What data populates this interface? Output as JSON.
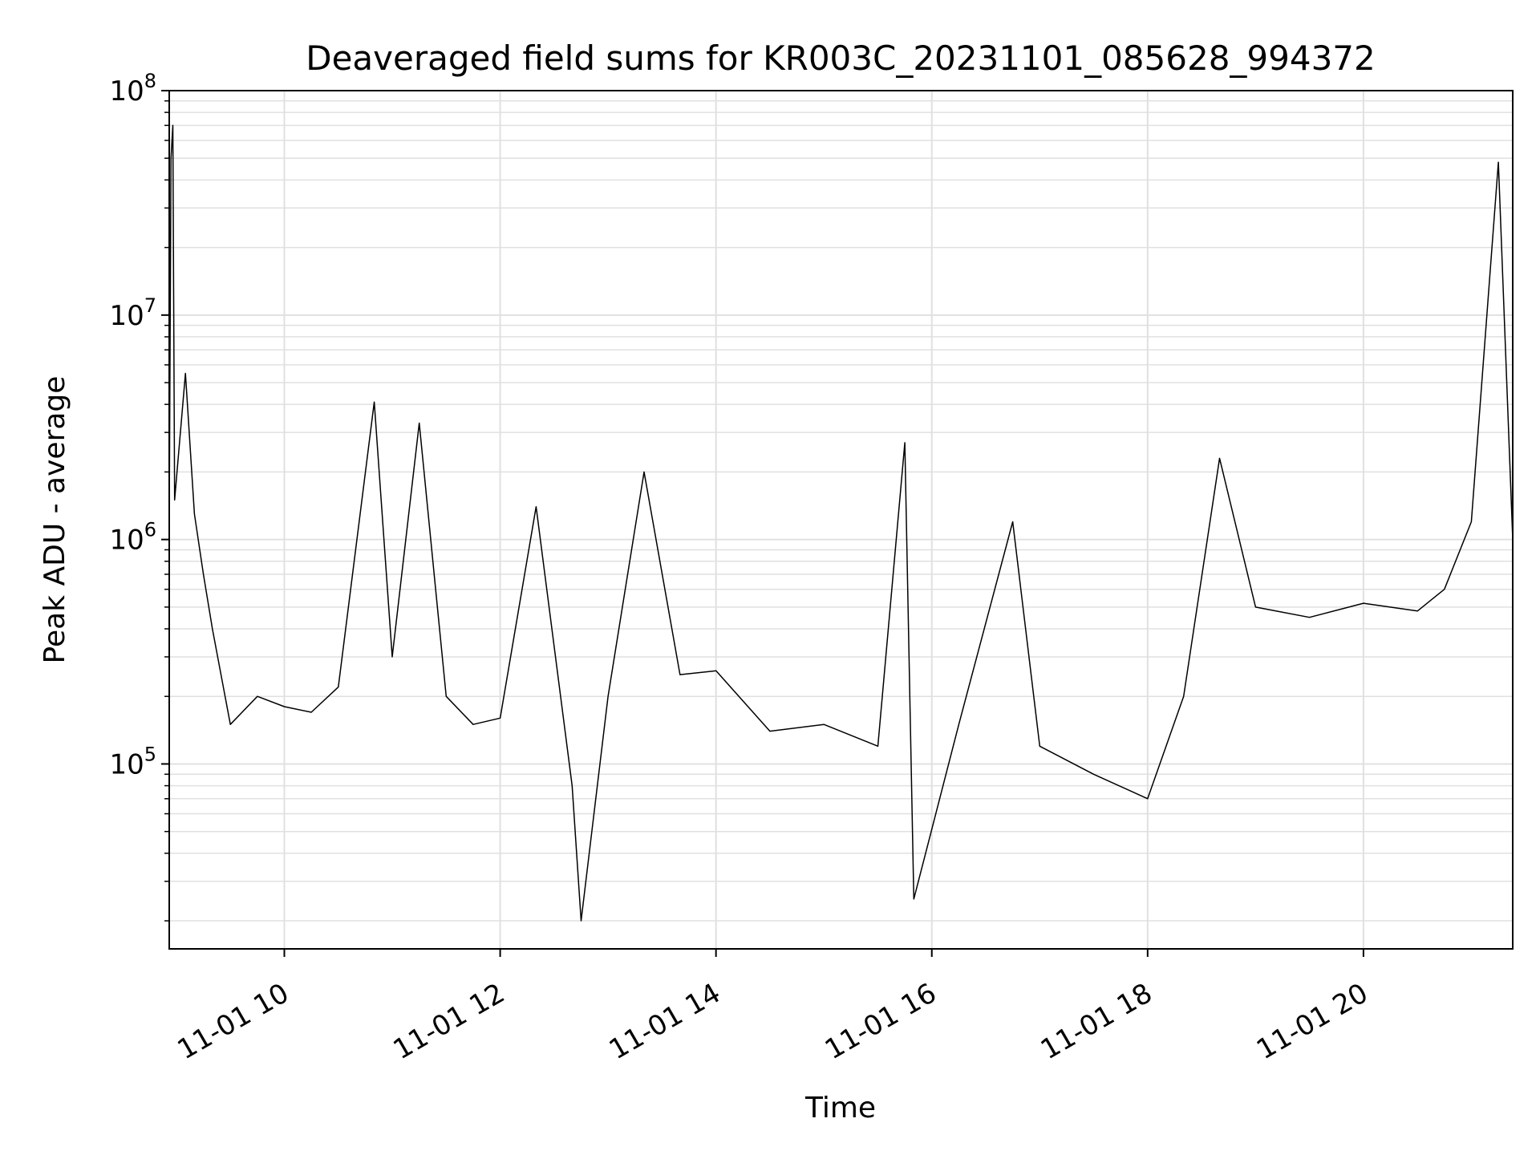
{
  "chart_data": {
    "type": "line",
    "title": "Deaveraged field sums for KR003C_20231101_085628_994372",
    "xlabel": "Time",
    "ylabel": "Peak ADU - average",
    "y_scale": "log",
    "ylim": [
      15000,
      100000000
    ],
    "xlim": [
      "2023-11-01 08:56",
      "2023-11-01 21:23"
    ],
    "grid": true,
    "line_color": "#000000",
    "grid_color": "#e0e0e0",
    "x_ticks": [
      {
        "value": "2023-11-01 10:00",
        "label": "11-01 10"
      },
      {
        "value": "2023-11-01 12:00",
        "label": "11-01 12"
      },
      {
        "value": "2023-11-01 14:00",
        "label": "11-01 14"
      },
      {
        "value": "2023-11-01 16:00",
        "label": "11-01 16"
      },
      {
        "value": "2023-11-01 18:00",
        "label": "11-01 18"
      },
      {
        "value": "2023-11-01 20:00",
        "label": "11-01 20"
      }
    ],
    "y_ticks": [
      {
        "value": 100000,
        "base": "10",
        "exp": "5"
      },
      {
        "value": 1000000,
        "base": "10",
        "exp": "6"
      },
      {
        "value": 10000000,
        "base": "10",
        "exp": "7"
      },
      {
        "value": 100000000,
        "base": "10",
        "exp": "8"
      }
    ],
    "series": [
      {
        "points": [
          [
            "2023-11-01 08:56",
            1200000
          ],
          [
            "2023-11-01 08:57",
            50000000
          ],
          [
            "2023-11-01 08:58",
            70000000
          ],
          [
            "2023-11-01 08:59",
            1500000
          ],
          [
            "2023-11-01 09:05",
            5500000
          ],
          [
            "2023-11-01 09:10",
            1300000
          ],
          [
            "2023-11-01 09:15",
            700000
          ],
          [
            "2023-11-01 09:20",
            400000
          ],
          [
            "2023-11-01 09:30",
            150000
          ],
          [
            "2023-11-01 09:45",
            200000
          ],
          [
            "2023-11-01 10:00",
            180000
          ],
          [
            "2023-11-01 10:15",
            170000
          ],
          [
            "2023-11-01 10:30",
            220000
          ],
          [
            "2023-11-01 10:50",
            4100000
          ],
          [
            "2023-11-01 11:00",
            300000
          ],
          [
            "2023-11-01 11:15",
            3300000
          ],
          [
            "2023-11-01 11:30",
            200000
          ],
          [
            "2023-11-01 11:45",
            150000
          ],
          [
            "2023-11-01 12:00",
            160000
          ],
          [
            "2023-11-01 12:20",
            1400000
          ],
          [
            "2023-11-01 12:40",
            80000
          ],
          [
            "2023-11-01 12:45",
            20000
          ],
          [
            "2023-11-01 13:00",
            200000
          ],
          [
            "2023-11-01 13:20",
            2000000
          ],
          [
            "2023-11-01 13:40",
            250000
          ],
          [
            "2023-11-01 14:00",
            260000
          ],
          [
            "2023-11-01 14:30",
            140000
          ],
          [
            "2023-11-01 15:00",
            150000
          ],
          [
            "2023-11-01 15:30",
            120000
          ],
          [
            "2023-11-01 15:45",
            2700000
          ],
          [
            "2023-11-01 15:50",
            25000
          ],
          [
            "2023-11-01 16:15",
            150000
          ],
          [
            "2023-11-01 16:45",
            1200000
          ],
          [
            "2023-11-01 17:00",
            120000
          ],
          [
            "2023-11-01 17:30",
            90000
          ],
          [
            "2023-11-01 18:00",
            70000
          ],
          [
            "2023-11-01 18:20",
            200000
          ],
          [
            "2023-11-01 18:40",
            2300000
          ],
          [
            "2023-11-01 19:00",
            500000
          ],
          [
            "2023-11-01 19:30",
            450000
          ],
          [
            "2023-11-01 20:00",
            520000
          ],
          [
            "2023-11-01 20:30",
            480000
          ],
          [
            "2023-11-01 20:45",
            600000
          ],
          [
            "2023-11-01 21:00",
            1200000
          ],
          [
            "2023-11-01 21:15",
            48000000
          ],
          [
            "2023-11-01 21:23",
            1000000
          ]
        ]
      }
    ]
  }
}
